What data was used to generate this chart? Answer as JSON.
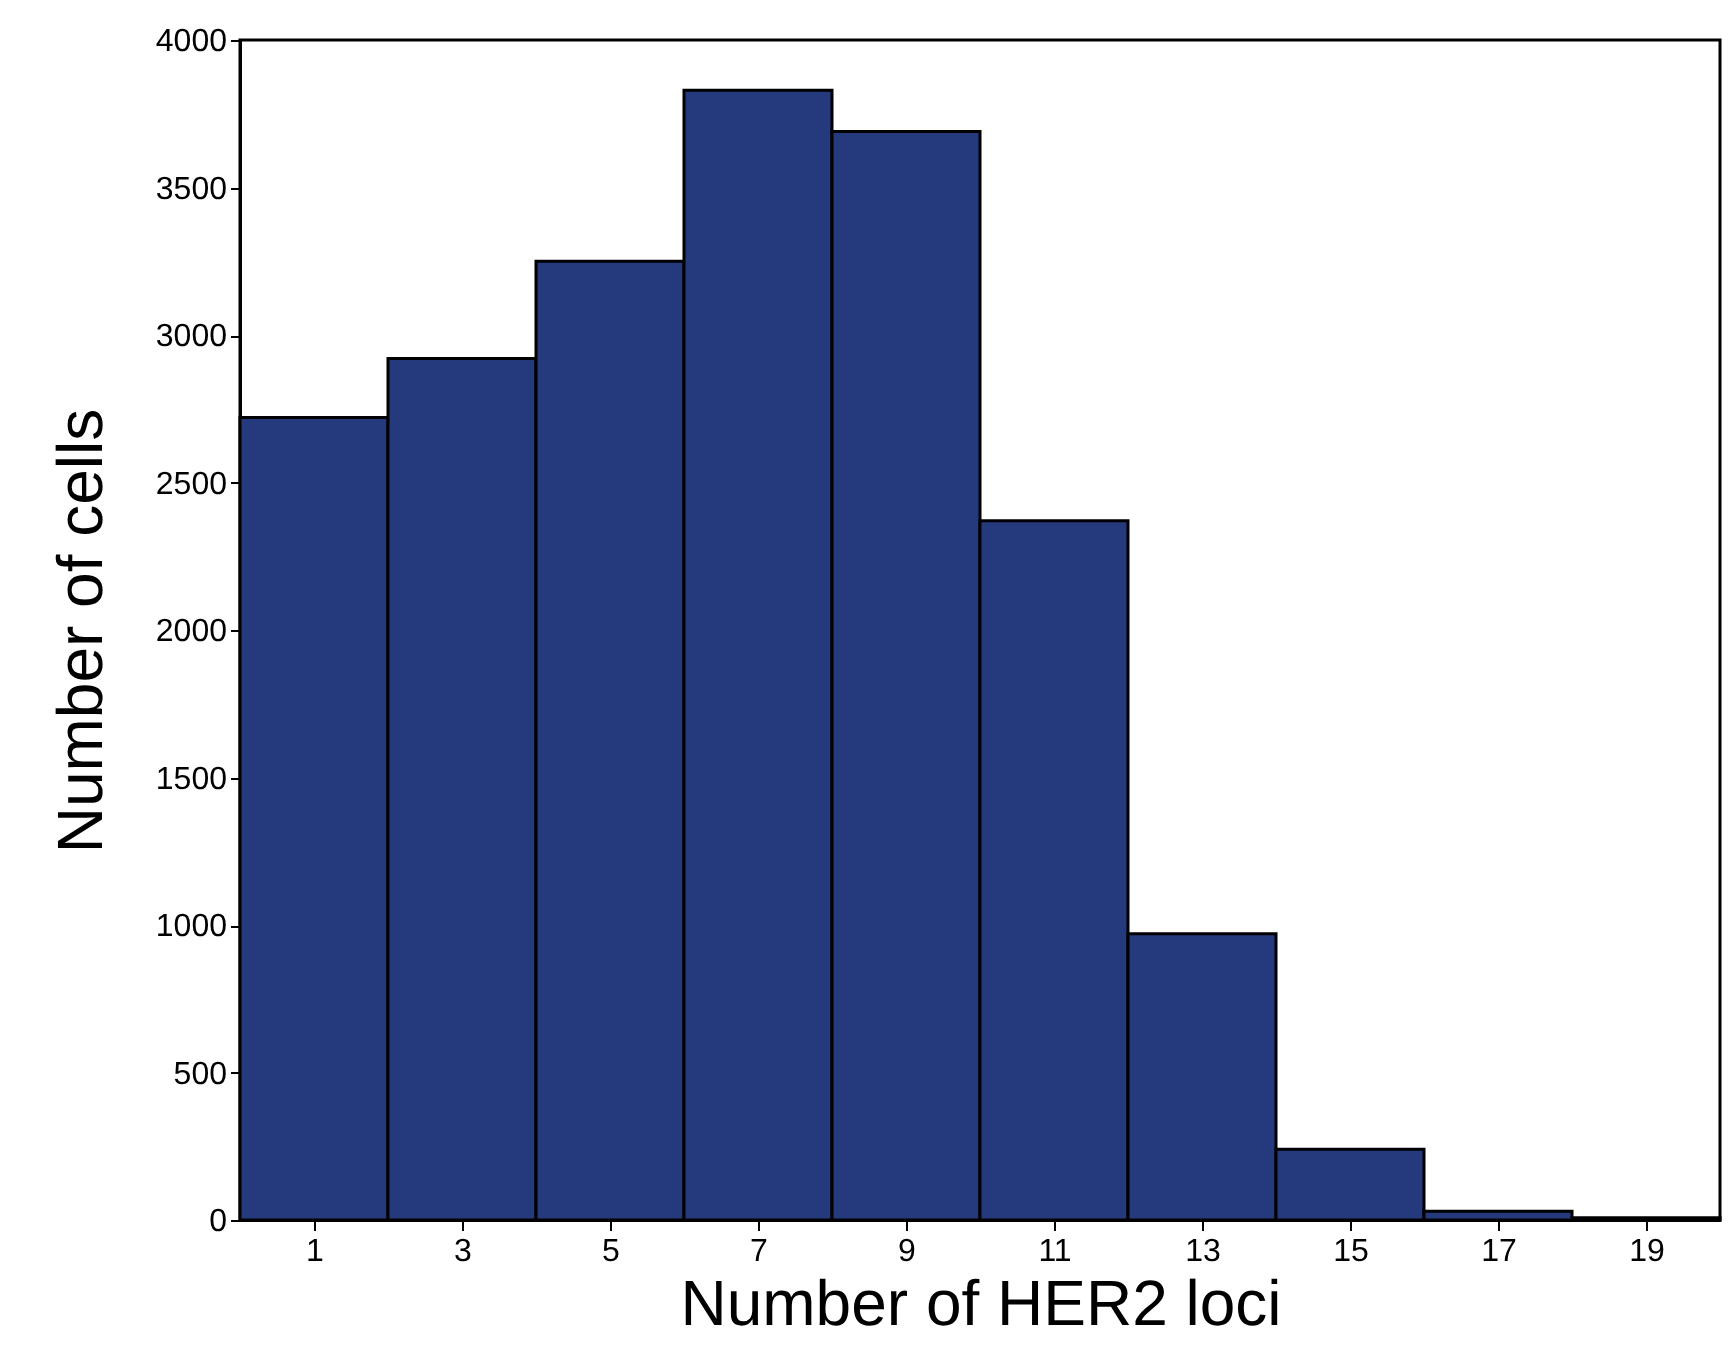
{
  "chart_data": {
    "type": "histogram",
    "xlabel": "Number of HER2 loci",
    "ylabel": "Number of cells",
    "bins": [
      0,
      2,
      4,
      6,
      8,
      10,
      12,
      14,
      16,
      18,
      20
    ],
    "values": [
      2720,
      2920,
      3250,
      3830,
      3690,
      2370,
      970,
      240,
      30,
      8
    ],
    "color": "#253a7d",
    "xlim": [
      0,
      20
    ],
    "xticks": [
      1,
      3,
      5,
      7,
      9,
      11,
      13,
      15,
      17,
      19
    ],
    "ylim": [
      0,
      4000
    ],
    "yticks": [
      0,
      500,
      1000,
      1500,
      2000,
      2500,
      3000,
      3500,
      4000
    ],
    "grid": false
  }
}
